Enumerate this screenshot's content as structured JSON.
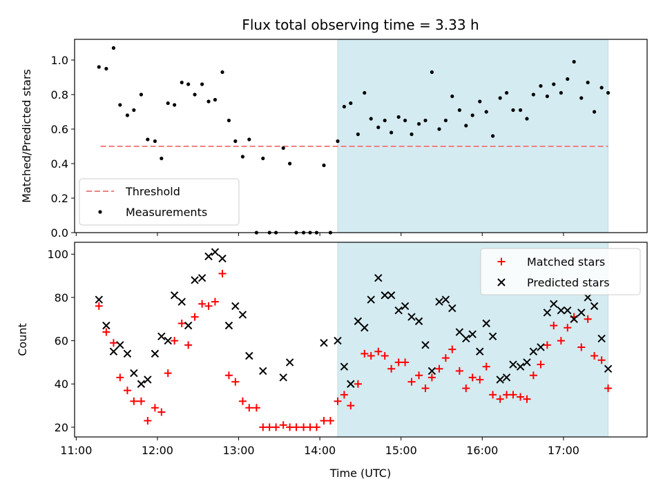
{
  "chart_data": {
    "type": "scatter",
    "title": "Flux total observing time = 3.33 h",
    "xlabel": "Time (UTC)",
    "x_ticks": [
      "11:00",
      "12:00",
      "13:00",
      "14:00",
      "15:00",
      "16:00",
      "17:00"
    ],
    "x_tick_hours": [
      11,
      12,
      13,
      14,
      15,
      16,
      17
    ],
    "xlim_hours": [
      10.98,
      18.03
    ],
    "highlight_span_hours": [
      14.22,
      17.55
    ],
    "colors": {
      "highlight": "#d4ebf1",
      "threshold": "#f08080",
      "measurements": "#000000",
      "matched": "#ff0000",
      "predicted": "#000000"
    },
    "panels": [
      {
        "name": "ratio",
        "ylabel": "Matched/Predicted stars",
        "ylim": [
          0,
          1.12
        ],
        "y_ticks": [
          0.0,
          0.2,
          0.4,
          0.6,
          0.8,
          1.0
        ],
        "y_tick_labels": [
          "0.0",
          "0.2",
          "0.4",
          "0.6",
          "0.8",
          "1.0"
        ],
        "legend": {
          "position": "lower-left",
          "entries": [
            "Threshold",
            "Measurements"
          ]
        },
        "threshold": {
          "name": "Threshold",
          "y": 0.5,
          "x_range": [
            11.3,
            17.55
          ]
        },
        "series": [
          {
            "name": "Measurements",
            "marker": "dot",
            "x": [
              11.28,
              11.37,
              11.46,
              11.54,
              11.63,
              11.71,
              11.8,
              11.88,
              11.97,
              12.05,
              12.13,
              12.21,
              12.3,
              12.38,
              12.46,
              12.55,
              12.63,
              12.71,
              12.8,
              12.88,
              12.96,
              13.05,
              13.13,
              13.22,
              13.3,
              13.38,
              13.46,
              13.55,
              13.63,
              13.71,
              13.8,
              13.88,
              13.96,
              14.05,
              14.13,
              14.22,
              14.3,
              14.38,
              14.47,
              14.55,
              14.63,
              14.72,
              14.8,
              14.88,
              14.97,
              15.05,
              15.13,
              15.22,
              15.3,
              15.38,
              15.47,
              15.55,
              15.63,
              15.72,
              15.8,
              15.88,
              15.97,
              16.05,
              16.13,
              16.22,
              16.3,
              16.38,
              16.47,
              16.55,
              16.63,
              16.72,
              16.8,
              16.88,
              16.97,
              17.05,
              17.13,
              17.22,
              17.3,
              17.38,
              17.47,
              17.55
            ],
            "y": [
              0.96,
              0.95,
              1.07,
              0.74,
              0.68,
              0.71,
              0.8,
              0.54,
              0.53,
              0.43,
              0.75,
              0.74,
              0.87,
              0.86,
              0.8,
              0.86,
              0.76,
              0.77,
              0.93,
              0.65,
              0.53,
              0.44,
              0.54,
              0.0,
              0.43,
              0.0,
              0.0,
              0.49,
              0.4,
              0.0,
              0.0,
              0.0,
              0.0,
              0.39,
              0.0,
              0.53,
              0.73,
              0.75,
              0.57,
              0.81,
              0.66,
              0.61,
              0.65,
              0.58,
              0.67,
              0.65,
              0.57,
              0.63,
              0.65,
              0.93,
              0.6,
              0.65,
              0.79,
              0.71,
              0.62,
              0.68,
              0.76,
              0.7,
              0.56,
              0.78,
              0.81,
              0.71,
              0.71,
              0.66,
              0.8,
              0.85,
              0.79,
              0.86,
              0.81,
              0.89,
              0.99,
              0.78,
              0.87,
              0.7,
              0.84,
              0.81
            ]
          }
        ]
      },
      {
        "name": "counts",
        "ylabel": "Count",
        "ylim": [
          15.5,
          105.5
        ],
        "y_ticks": [
          20,
          40,
          60,
          80,
          100
        ],
        "y_tick_labels": [
          "20",
          "40",
          "60",
          "80",
          "100"
        ],
        "legend": {
          "position": "upper-right",
          "entries": [
            "Matched stars",
            "Predicted stars"
          ]
        },
        "series": [
          {
            "name": "Matched stars",
            "marker": "plus",
            "x": [
              11.28,
              11.37,
              11.46,
              11.54,
              11.63,
              11.71,
              11.8,
              11.88,
              11.97,
              12.05,
              12.13,
              12.21,
              12.3,
              12.38,
              12.46,
              12.55,
              12.63,
              12.71,
              12.8,
              12.88,
              12.96,
              13.05,
              13.13,
              13.22,
              13.3,
              13.38,
              13.46,
              13.55,
              13.63,
              13.71,
              13.8,
              13.88,
              13.96,
              14.05,
              14.13,
              14.22,
              14.3,
              14.38,
              14.47,
              14.55,
              14.63,
              14.72,
              14.8,
              14.88,
              14.97,
              15.05,
              15.13,
              15.22,
              15.3,
              15.38,
              15.47,
              15.55,
              15.63,
              15.72,
              15.8,
              15.88,
              15.97,
              16.05,
              16.13,
              16.22,
              16.3,
              16.38,
              16.47,
              16.55,
              16.63,
              16.72,
              16.8,
              16.88,
              16.97,
              17.05,
              17.13,
              17.22,
              17.3,
              17.38,
              17.47,
              17.55
            ],
            "y": [
              76,
              64,
              59,
              43,
              37,
              32,
              32,
              23,
              29,
              27,
              45,
              60,
              68,
              58,
              71,
              77,
              76,
              78,
              91,
              44,
              41,
              32,
              29,
              29,
              20,
              20,
              20,
              21,
              20,
              20,
              20,
              20,
              20,
              23,
              23,
              32,
              35,
              30,
              40,
              54,
              53,
              55,
              53,
              47,
              50,
              50,
              41,
              44,
              38,
              43,
              47,
              52,
              56,
              46,
              38,
              43,
              42,
              48,
              35,
              33,
              35,
              35,
              34,
              33,
              44,
              49,
              58,
              67,
              60,
              66,
              71,
              57,
              70,
              53,
              51,
              38
            ]
          },
          {
            "name": "Predicted stars",
            "marker": "x",
            "x": [
              11.28,
              11.37,
              11.46,
              11.54,
              11.63,
              11.71,
              11.8,
              11.88,
              11.97,
              12.05,
              12.13,
              12.21,
              12.3,
              12.38,
              12.46,
              12.55,
              12.63,
              12.71,
              12.8,
              12.88,
              12.96,
              13.05,
              13.13,
              13.3,
              13.55,
              13.63,
              14.05,
              14.22,
              14.3,
              14.38,
              14.47,
              14.55,
              14.63,
              14.72,
              14.8,
              14.88,
              14.97,
              15.05,
              15.13,
              15.22,
              15.3,
              15.38,
              15.47,
              15.55,
              15.63,
              15.72,
              15.8,
              15.88,
              15.97,
              16.05,
              16.13,
              16.22,
              16.3,
              16.38,
              16.47,
              16.55,
              16.63,
              16.72,
              16.8,
              16.88,
              16.97,
              17.05,
              17.13,
              17.22,
              17.3,
              17.38,
              17.47,
              17.55
            ],
            "y": [
              79,
              67,
              55,
              58,
              54,
              45,
              40,
              42,
              54,
              62,
              60,
              81,
              78,
              67,
              88,
              89,
              99,
              101,
              98,
              67,
              76,
              72,
              53,
              46,
              43,
              50,
              59,
              60,
              48,
              40,
              69,
              66,
              79,
              89,
              81,
              81,
              74,
              76,
              71,
              69,
              58,
              46,
              78,
              79,
              75,
              64,
              61,
              63,
              55,
              68,
              62,
              42,
              43,
              49,
              48,
              50,
              55,
              57,
              73,
              77,
              74,
              74,
              70,
              73,
              80,
              76,
              61,
              47
            ]
          }
        ]
      }
    ]
  }
}
